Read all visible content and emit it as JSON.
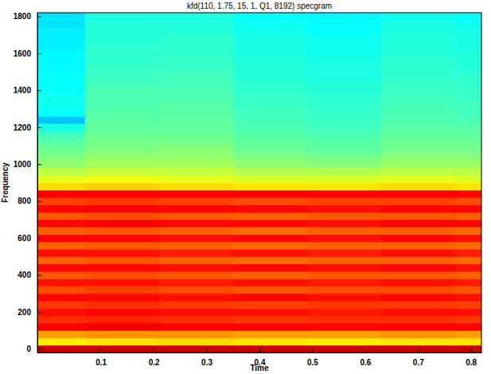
{
  "chart_data": {
    "type": "heatmap",
    "title": "kfd(110, 1.75, 15, 1, Q1, 8192) specgram",
    "x_label": "Time",
    "y_label": "Frequency",
    "x": [
      0,
      0.14,
      0.28,
      0.42,
      0.56,
      0.7,
      0.84
    ],
    "y": [
      0,
      40,
      80,
      120,
      160,
      200,
      240,
      280,
      320,
      360,
      400,
      440,
      480,
      520,
      560,
      600,
      640,
      680,
      720,
      760,
      800,
      840,
      880,
      920,
      960,
      1000,
      1040,
      1080,
      1120,
      1160,
      1200,
      1240,
      1280,
      1320,
      1360,
      1400,
      1440,
      1480,
      1520,
      1560,
      1600,
      1640,
      1680,
      1720,
      1760,
      1800
    ],
    "z": [
      [
        -8,
        -8,
        -8,
        -8,
        -8,
        -8,
        -8
      ],
      [
        -36,
        -35,
        -34,
        -35,
        -36,
        -35,
        -35
      ],
      [
        -28,
        -27,
        -27,
        -28,
        -28,
        -27,
        -28
      ],
      [
        -12,
        -11,
        -12,
        -12,
        -13,
        -12,
        -12
      ],
      [
        -17,
        -16,
        -17,
        -18,
        -17,
        -17,
        -18
      ],
      [
        -14,
        -13,
        -14,
        -14,
        -15,
        -14,
        -14
      ],
      [
        -18,
        -17,
        -18,
        -19,
        -18,
        -18,
        -19
      ],
      [
        -13,
        -13,
        -14,
        -13,
        -14,
        -13,
        -14
      ],
      [
        -20,
        -19,
        -20,
        -21,
        -20,
        -20,
        -21
      ],
      [
        -14,
        -14,
        -15,
        -14,
        -15,
        -14,
        -15
      ],
      [
        -21,
        -20,
        -21,
        -22,
        -21,
        -21,
        -22
      ],
      [
        -13,
        -13,
        -14,
        -13,
        -14,
        -13,
        -14
      ],
      [
        -22,
        -21,
        -22,
        -23,
        -22,
        -22,
        -23
      ],
      [
        -14,
        -14,
        -15,
        -14,
        -15,
        -14,
        -15
      ],
      [
        -22,
        -21,
        -22,
        -23,
        -22,
        -22,
        -23
      ],
      [
        -13,
        -13,
        -14,
        -13,
        -14,
        -13,
        -14
      ],
      [
        -22,
        -21,
        -22,
        -23,
        -22,
        -22,
        -23
      ],
      [
        -13,
        -12,
        -13,
        -13,
        -14,
        -13,
        -13
      ],
      [
        -21,
        -20,
        -21,
        -22,
        -21,
        -21,
        -22
      ],
      [
        -13,
        -12,
        -13,
        -13,
        -14,
        -13,
        -13
      ],
      [
        -19,
        -18,
        -19,
        -20,
        -19,
        -19,
        -20
      ],
      [
        -12,
        -12,
        -13,
        -12,
        -13,
        -12,
        -13
      ],
      [
        -34,
        -33,
        -34,
        -35,
        -35,
        -34,
        -35
      ],
      [
        -40,
        -39,
        -40,
        -41,
        -41,
        -40,
        -41
      ],
      [
        -44,
        -43,
        -43,
        -45,
        -45,
        -44,
        -44
      ],
      [
        -48,
        -46,
        -46,
        -48,
        -49,
        -47,
        -47
      ],
      [
        -50,
        -48,
        -48,
        -50,
        -51,
        -49,
        -49
      ],
      [
        -52,
        -50,
        -49,
        -52,
        -53,
        -51,
        -51
      ],
      [
        -54,
        -51,
        -51,
        -53,
        -54,
        -52,
        -52
      ],
      [
        -56,
        -52,
        -52,
        -54,
        -55,
        -53,
        -53
      ],
      [
        -60,
        -53,
        -53,
        -55,
        -56,
        -54,
        -54
      ],
      [
        -68,
        -54,
        -53,
        -56,
        -57,
        -55,
        -55
      ],
      [
        -62,
        -54,
        -54,
        -56,
        -57,
        -55,
        -56
      ],
      [
        -61,
        -55,
        -54,
        -57,
        -58,
        -56,
        -56
      ],
      [
        -61,
        -55,
        -55,
        -57,
        -58,
        -56,
        -57
      ],
      [
        -62,
        -55,
        -55,
        -58,
        -59,
        -57,
        -57
      ],
      [
        -62,
        -56,
        -56,
        -58,
        -59,
        -57,
        -58
      ],
      [
        -62,
        -57,
        -56,
        -59,
        -60,
        -58,
        -58
      ],
      [
        -63,
        -57,
        -57,
        -59,
        -60,
        -58,
        -59
      ],
      [
        -63,
        -58,
        -57,
        -59,
        -60,
        -58,
        -59
      ],
      [
        -63,
        -58,
        -58,
        -60,
        -61,
        -59,
        -59
      ],
      [
        -64,
        -58,
        -58,
        -60,
        -61,
        -59,
        -60
      ],
      [
        -64,
        -59,
        -58,
        -60,
        -61,
        -59,
        -60
      ],
      [
        -64,
        -59,
        -59,
        -61,
        -62,
        -60,
        -60
      ],
      [
        -65,
        -59,
        -59,
        -61,
        -62,
        -60,
        -61
      ],
      [
        -65,
        -60,
        -60,
        -62,
        -63,
        -61,
        -62
      ]
    ],
    "zlim": [
      -100,
      0
    ],
    "xlim": [
      -0.02,
      0.82
    ],
    "ylim": [
      -20,
      1820
    ],
    "xticks": [
      0.1,
      0.2,
      0.3,
      0.4,
      0.5,
      0.6,
      0.7,
      0.8
    ],
    "yticks": [
      0,
      200,
      400,
      600,
      800,
      1000,
      1200,
      1400,
      1600,
      1800
    ]
  }
}
